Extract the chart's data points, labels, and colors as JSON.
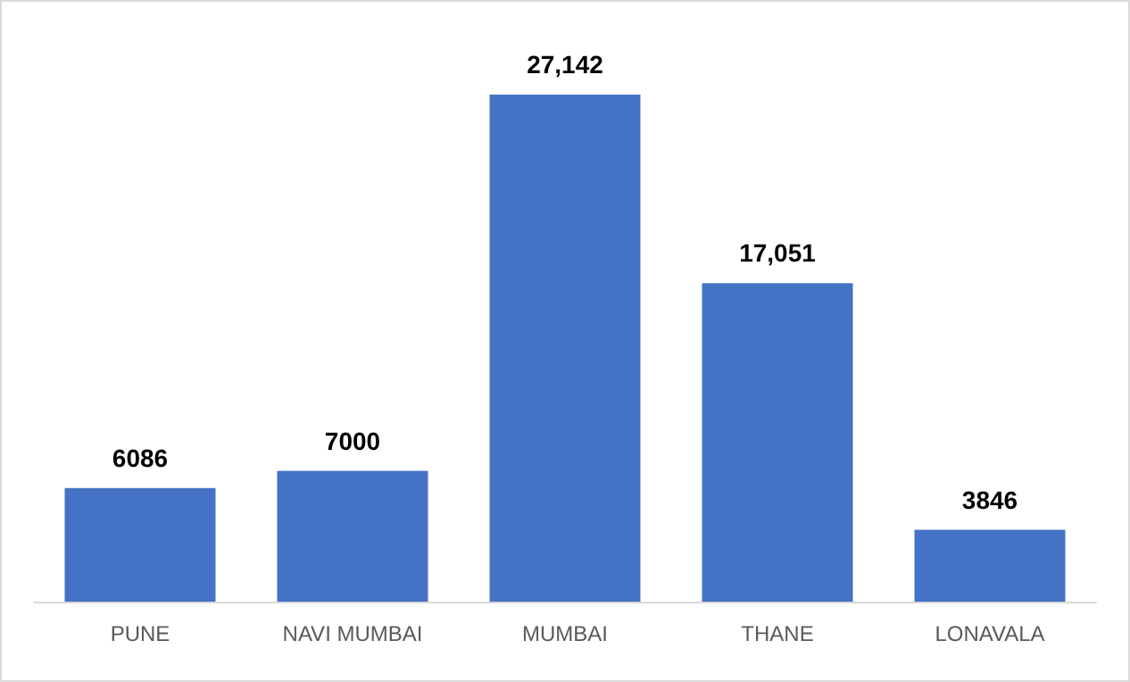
{
  "chart_data": {
    "type": "bar",
    "categories": [
      "PUNE",
      "NAVI MUMBAI",
      "MUMBAI",
      "THANE",
      "LONAVALA"
    ],
    "values": [
      6086,
      7000,
      27142,
      17051,
      3846
    ],
    "value_labels": [
      "6086",
      "7000",
      "27,142",
      "17,051",
      "3846"
    ],
    "color": "#4472c4"
  }
}
